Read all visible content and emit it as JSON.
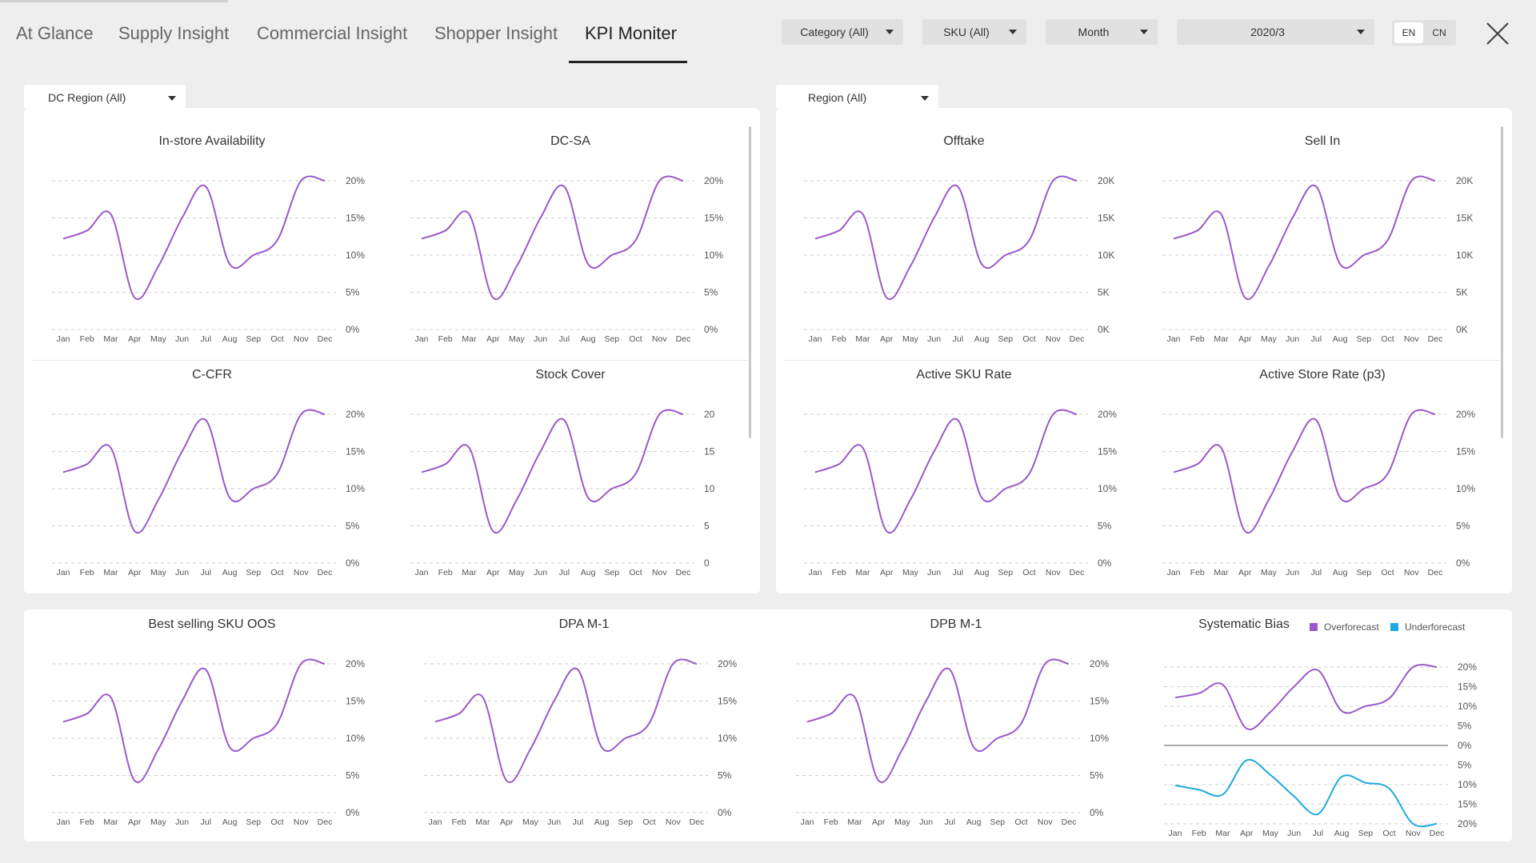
{
  "nav": {
    "tabs": [
      {
        "label": "At Glance"
      },
      {
        "label": "Supply Insight"
      },
      {
        "label": "Commercial Insight"
      },
      {
        "label": "Shopper Insight"
      },
      {
        "label": "KPI Moniter"
      }
    ],
    "active_tab": "KPI Moniter"
  },
  "filters": {
    "category": "Category  (All)",
    "sku": "SKU  (All)",
    "period": "Month",
    "date": "2020/3"
  },
  "lang": {
    "en": "EN",
    "cn": "CN",
    "selected": "EN"
  },
  "panels": {
    "dc_region": "DC Region  (All)",
    "region": "Region  (All)"
  },
  "colors": {
    "primary": "#9b59c9",
    "secondary": "#1fa9e0"
  },
  "chart_data": [
    {
      "id": "isa",
      "type": "line",
      "title": "In-store Availability",
      "categories": [
        "Jan",
        "Feb",
        "Mar",
        "Apr",
        "May",
        "Jun",
        "Jul",
        "Aug",
        "Sep",
        "Oct",
        "Nov",
        "Dec"
      ],
      "ticks": [
        "20%",
        "15%",
        "10%",
        "5%",
        "0%"
      ],
      "ylim": [
        0,
        20
      ],
      "series": [
        {
          "values": [
            12.2,
            13.3,
            15.5,
            4.3,
            8.5,
            15.0,
            19.2,
            8.8,
            10.0,
            12.0,
            20.0,
            20.0
          ]
        }
      ]
    },
    {
      "id": "dcsa",
      "type": "line",
      "title": "DC-SA",
      "categories": [
        "Jan",
        "Feb",
        "Mar",
        "Apr",
        "May",
        "Jun",
        "Jul",
        "Aug",
        "Sep",
        "Oct",
        "Nov",
        "Dec"
      ],
      "ticks": [
        "20%",
        "15%",
        "10%",
        "5%",
        "0%"
      ],
      "ylim": [
        0,
        20
      ],
      "series": [
        {
          "values": [
            12.2,
            13.3,
            15.5,
            4.3,
            8.5,
            15.0,
            19.2,
            8.8,
            10.0,
            12.0,
            20.0,
            20.0
          ]
        }
      ]
    },
    {
      "id": "offtake",
      "type": "line",
      "title": "Offtake",
      "categories": [
        "Jan",
        "Feb",
        "Mar",
        "Apr",
        "May",
        "Jun",
        "Jul",
        "Aug",
        "Sep",
        "Oct",
        "Nov",
        "Dec"
      ],
      "ticks": [
        "20K",
        "15K",
        "10K",
        "5K",
        "0K"
      ],
      "ylim": [
        0,
        20000
      ],
      "series": [
        {
          "values": [
            12200,
            13300,
            15500,
            4300,
            8500,
            15000,
            19200,
            8800,
            10000,
            12000,
            20000,
            20000
          ]
        }
      ]
    },
    {
      "id": "sellin",
      "type": "line",
      "title": "Sell In",
      "categories": [
        "Jan",
        "Feb",
        "Mar",
        "Apr",
        "May",
        "Jun",
        "Jul",
        "Aug",
        "Sep",
        "Oct",
        "Nov",
        "Dec"
      ],
      "ticks": [
        "20K",
        "15K",
        "10K",
        "5K",
        "0K"
      ],
      "ylim": [
        0,
        20000
      ],
      "series": [
        {
          "values": [
            12200,
            13300,
            15500,
            4300,
            8500,
            15000,
            19200,
            8800,
            10000,
            12000,
            20000,
            20000
          ]
        }
      ]
    },
    {
      "id": "ccfr",
      "type": "line",
      "title": "C-CFR",
      "categories": [
        "Jan",
        "Feb",
        "Mar",
        "Apr",
        "May",
        "Jun",
        "Jul",
        "Aug",
        "Sep",
        "Oct",
        "Nov",
        "Dec"
      ],
      "ticks": [
        "20%",
        "15%",
        "10%",
        "5%",
        "0%"
      ],
      "ylim": [
        0,
        20
      ],
      "series": [
        {
          "values": [
            12.2,
            13.3,
            15.5,
            4.3,
            8.5,
            15.0,
            19.2,
            8.8,
            10.0,
            12.0,
            20.0,
            20.0
          ]
        }
      ]
    },
    {
      "id": "stock",
      "type": "line",
      "title": "Stock Cover",
      "categories": [
        "Jan",
        "Feb",
        "Mar",
        "Apr",
        "May",
        "Jun",
        "Jul",
        "Aug",
        "Sep",
        "Oct",
        "Nov",
        "Dec"
      ],
      "ticks": [
        "20",
        "15",
        "10",
        "5",
        "0"
      ],
      "ylim": [
        0,
        20
      ],
      "series": [
        {
          "values": [
            12.2,
            13.3,
            15.5,
            4.3,
            8.5,
            15.0,
            19.2,
            8.8,
            10.0,
            12.0,
            20.0,
            20.0
          ]
        }
      ]
    },
    {
      "id": "asku",
      "type": "line",
      "title": "Active SKU Rate",
      "categories": [
        "Jan",
        "Feb",
        "Mar",
        "Apr",
        "May",
        "Jun",
        "Jul",
        "Aug",
        "Sep",
        "Oct",
        "Nov",
        "Dec"
      ],
      "ticks": [
        "20%",
        "15%",
        "10%",
        "5%",
        "0%"
      ],
      "ylim": [
        0,
        20
      ],
      "series": [
        {
          "values": [
            12.2,
            13.3,
            15.5,
            4.3,
            8.5,
            15.0,
            19.2,
            8.8,
            10.0,
            12.0,
            20.0,
            20.0
          ]
        }
      ]
    },
    {
      "id": "astore",
      "type": "line",
      "title": "Active Store Rate (p3)",
      "categories": [
        "Jan",
        "Feb",
        "Mar",
        "Apr",
        "May",
        "Jun",
        "Jul",
        "Aug",
        "Sep",
        "Oct",
        "Nov",
        "Dec"
      ],
      "ticks": [
        "20%",
        "15%",
        "10%",
        "5%",
        "0%"
      ],
      "ylim": [
        0,
        20
      ],
      "series": [
        {
          "values": [
            12.2,
            13.3,
            15.5,
            4.3,
            8.5,
            15.0,
            19.2,
            8.8,
            10.0,
            12.0,
            20.0,
            20.0
          ]
        }
      ]
    },
    {
      "id": "bsoos",
      "type": "line",
      "title": "Best selling SKU OOS",
      "categories": [
        "Jan",
        "Feb",
        "Mar",
        "Apr",
        "May",
        "Jun",
        "Jul",
        "Aug",
        "Sep",
        "Oct",
        "Nov",
        "Dec"
      ],
      "ticks": [
        "20%",
        "15%",
        "10%",
        "5%",
        "0%"
      ],
      "ylim": [
        0,
        20
      ],
      "series": [
        {
          "values": [
            12.2,
            13.3,
            15.5,
            4.3,
            8.5,
            15.0,
            19.2,
            8.8,
            10.0,
            12.0,
            20.0,
            20.0
          ]
        }
      ]
    },
    {
      "id": "dpa",
      "type": "line",
      "title": "DPA M-1",
      "categories": [
        "Jan",
        "Feb",
        "Mar",
        "Apr",
        "May",
        "Jun",
        "Jul",
        "Aug",
        "Sep",
        "Oct",
        "Nov",
        "Dec"
      ],
      "ticks": [
        "20%",
        "15%",
        "10%",
        "5%",
        "0%"
      ],
      "ylim": [
        0,
        20
      ],
      "series": [
        {
          "values": [
            12.2,
            13.3,
            15.5,
            4.3,
            8.5,
            15.0,
            19.2,
            8.8,
            10.0,
            12.0,
            20.0,
            20.0
          ]
        }
      ]
    },
    {
      "id": "dpb",
      "type": "line",
      "title": "DPB M-1",
      "categories": [
        "Jan",
        "Feb",
        "Mar",
        "Apr",
        "May",
        "Jun",
        "Jul",
        "Aug",
        "Sep",
        "Oct",
        "Nov",
        "Dec"
      ],
      "ticks": [
        "20%",
        "15%",
        "10%",
        "5%",
        "0%"
      ],
      "ylim": [
        0,
        20
      ],
      "series": [
        {
          "values": [
            12.2,
            13.3,
            15.5,
            4.3,
            8.5,
            15.0,
            19.2,
            8.8,
            10.0,
            12.0,
            20.0,
            20.0
          ]
        }
      ]
    },
    {
      "id": "bias",
      "type": "line",
      "title": "Systematic Bias",
      "categories": [
        "Jan",
        "Feb",
        "Mar",
        "Apr",
        "May",
        "Jun",
        "Jul",
        "Aug",
        "Sep",
        "Oct",
        "Nov",
        "Dec"
      ],
      "ticks": [
        "20%",
        "15%",
        "10%",
        "5%",
        "0%",
        "5%",
        "10%",
        "15%",
        "20%"
      ],
      "ylim": [
        -20,
        20
      ],
      "legend": "top-right",
      "series": [
        {
          "name": "Overforecast",
          "values": [
            12.2,
            13.3,
            15.5,
            4.3,
            8.5,
            15.0,
            19.2,
            8.8,
            10.0,
            12.0,
            20.0,
            20.0
          ]
        },
        {
          "name": "Underforecast",
          "values": [
            -10.2,
            -11.3,
            -12.5,
            -3.8,
            -7.5,
            -13.0,
            -17.5,
            -8.0,
            -9.5,
            -11.0,
            -20.0,
            -20.0
          ]
        }
      ]
    }
  ]
}
